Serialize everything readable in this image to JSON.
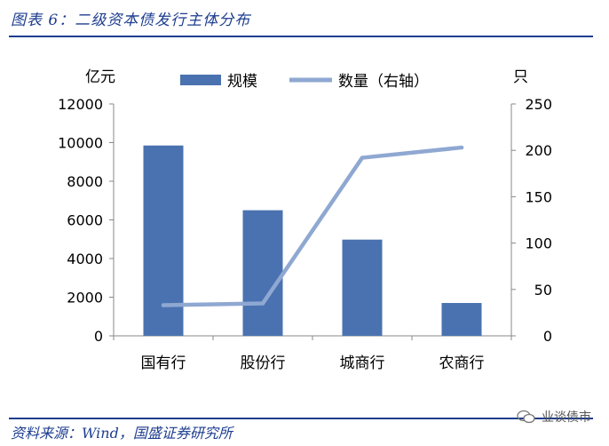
{
  "figure": {
    "title": "图表 6：二级资本债发行主体分布",
    "source": "资料来源：Wind，国盛证券研究所",
    "watermark": "业谈债市"
  },
  "chart_data": {
    "type": "bar",
    "categories": [
      "国有行",
      "股份行",
      "城商行",
      "农商行"
    ],
    "series": [
      {
        "name": "规模",
        "type": "bar",
        "axis": "left",
        "color": "#4a72b0",
        "values": [
          9850,
          6500,
          4980,
          1700
        ]
      },
      {
        "name": "数量（右轴）",
        "type": "line",
        "axis": "right",
        "color": "#8fa8d2",
        "values": [
          33,
          35,
          192,
          203
        ]
      }
    ],
    "y_left": {
      "unit": "亿元",
      "ylim": [
        0,
        12000
      ],
      "ticks": [
        "0",
        "2000",
        "4000",
        "6000",
        "8000",
        "10000",
        "12000"
      ]
    },
    "y_right": {
      "unit": "只",
      "ylim": [
        0,
        250
      ],
      "ticks": [
        "0",
        "50",
        "100",
        "150",
        "200",
        "250"
      ]
    },
    "legend_position": "top",
    "grid": false
  }
}
